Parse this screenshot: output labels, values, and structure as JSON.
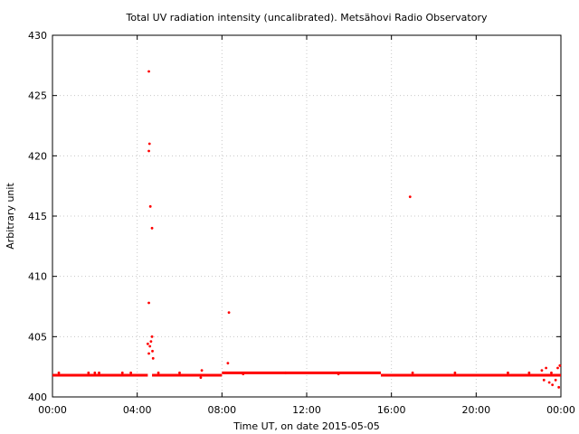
{
  "chart_data": {
    "type": "scatter",
    "title": "Total UV radiation intensity (uncalibrated). Metsähovi Radio Observatory",
    "xlabel": "Time UT, on date 2015-05-05",
    "ylabel": "Arbitrary unit",
    "x_unit": "hours UT",
    "xlim": [
      0,
      24
    ],
    "ylim": [
      400,
      430
    ],
    "x_ticks": [
      {
        "value": 0,
        "label": "00:00"
      },
      {
        "value": 4,
        "label": "04:00"
      },
      {
        "value": 8,
        "label": "08:00"
      },
      {
        "value": 12,
        "label": "12:00"
      },
      {
        "value": 16,
        "label": "16:00"
      },
      {
        "value": 20,
        "label": "20:00"
      },
      {
        "value": 24,
        "label": "00:00"
      }
    ],
    "y_ticks": [
      {
        "value": 400,
        "label": "400"
      },
      {
        "value": 405,
        "label": "405"
      },
      {
        "value": 410,
        "label": "410"
      },
      {
        "value": 415,
        "label": "415"
      },
      {
        "value": 420,
        "label": "420"
      },
      {
        "value": 425,
        "label": "425"
      },
      {
        "value": 430,
        "label": "430"
      }
    ],
    "grid": true,
    "color": "#ff0000",
    "baseline_segments": [
      {
        "x_start": 0.0,
        "x_end": 4.5,
        "y": 401.8
      },
      {
        "x_start": 4.7,
        "x_end": 8.0,
        "y": 401.8
      },
      {
        "x_start": 8.0,
        "x_end": 15.5,
        "y": 402.0
      },
      {
        "x_start": 15.5,
        "x_end": 24.0,
        "y": 401.8
      }
    ],
    "points": [
      [
        4.55,
        427.0
      ],
      [
        4.58,
        421.0
      ],
      [
        4.55,
        420.4
      ],
      [
        4.62,
        415.8
      ],
      [
        4.7,
        414.0
      ],
      [
        4.55,
        407.8
      ],
      [
        4.7,
        405.0
      ],
      [
        4.5,
        404.4
      ],
      [
        4.65,
        404.6
      ],
      [
        4.6,
        404.2
      ],
      [
        4.72,
        403.8
      ],
      [
        4.55,
        403.6
      ],
      [
        4.75,
        403.2
      ],
      [
        8.33,
        407.0
      ],
      [
        8.28,
        402.8
      ],
      [
        16.88,
        416.6
      ],
      [
        7.0,
        401.6
      ],
      [
        7.05,
        402.2
      ],
      [
        23.1,
        402.2
      ],
      [
        23.2,
        401.4
      ],
      [
        23.3,
        402.4
      ],
      [
        23.45,
        401.2
      ],
      [
        23.55,
        402.0
      ],
      [
        23.6,
        401.0
      ],
      [
        23.75,
        401.4
      ],
      [
        23.85,
        402.4
      ],
      [
        23.9,
        400.8
      ],
      [
        23.95,
        402.6
      ],
      [
        0.3,
        402.0
      ],
      [
        1.7,
        402.0
      ],
      [
        2.0,
        402.0
      ],
      [
        2.2,
        402.0
      ],
      [
        3.3,
        402.0
      ],
      [
        3.7,
        402.0
      ],
      [
        5.0,
        402.0
      ],
      [
        6.0,
        402.0
      ],
      [
        9.0,
        401.9
      ],
      [
        11.0,
        402.0
      ],
      [
        13.5,
        401.9
      ],
      [
        17.0,
        402.0
      ],
      [
        19.0,
        402.0
      ],
      [
        21.5,
        402.0
      ],
      [
        22.5,
        402.0
      ]
    ]
  }
}
